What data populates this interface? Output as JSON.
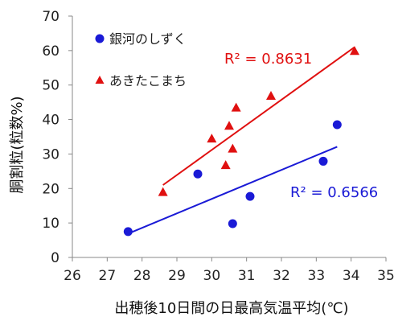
{
  "chart_data": {
    "type": "scatter",
    "xlabel": "出穂後10日間の日最高気温平均(℃)",
    "ylabel": "胴割粒(粒数%)",
    "xlim": [
      26,
      35
    ],
    "ylim": [
      0,
      70
    ],
    "xticks": [
      "26",
      "27",
      "28",
      "29",
      "30",
      "31",
      "32",
      "33",
      "34",
      "35"
    ],
    "yticks": [
      "0",
      "10",
      "20",
      "30",
      "40",
      "50",
      "60",
      "70"
    ],
    "grid": false,
    "legend_position": "top-left",
    "series": [
      {
        "name": "銀河のしずく",
        "marker": "circle",
        "color": "#1a1ad6",
        "points": [
          [
            27.6,
            7.5
          ],
          [
            29.6,
            24.2
          ],
          [
            30.6,
            9.8
          ],
          [
            31.1,
            17.7
          ],
          [
            33.2,
            27.9
          ],
          [
            33.6,
            38.5
          ]
        ],
        "trendline": {
          "x": [
            27.6,
            33.6
          ],
          "y": [
            6.9,
            32.1
          ]
        },
        "r2_label": "R² = 0.6566"
      },
      {
        "name": "あきたこまち",
        "marker": "triangle",
        "color": "#e01010",
        "points": [
          [
            28.6,
            19.0
          ],
          [
            30.0,
            34.5
          ],
          [
            30.4,
            26.8
          ],
          [
            30.5,
            38.2
          ],
          [
            30.6,
            31.6
          ],
          [
            30.7,
            43.5
          ],
          [
            31.7,
            46.9
          ],
          [
            34.1,
            59.9
          ]
        ],
        "trendline": {
          "x": [
            28.6,
            34.1
          ],
          "y": [
            21.0,
            61.0
          ]
        },
        "r2_label": "R² = 0.8631"
      }
    ]
  }
}
